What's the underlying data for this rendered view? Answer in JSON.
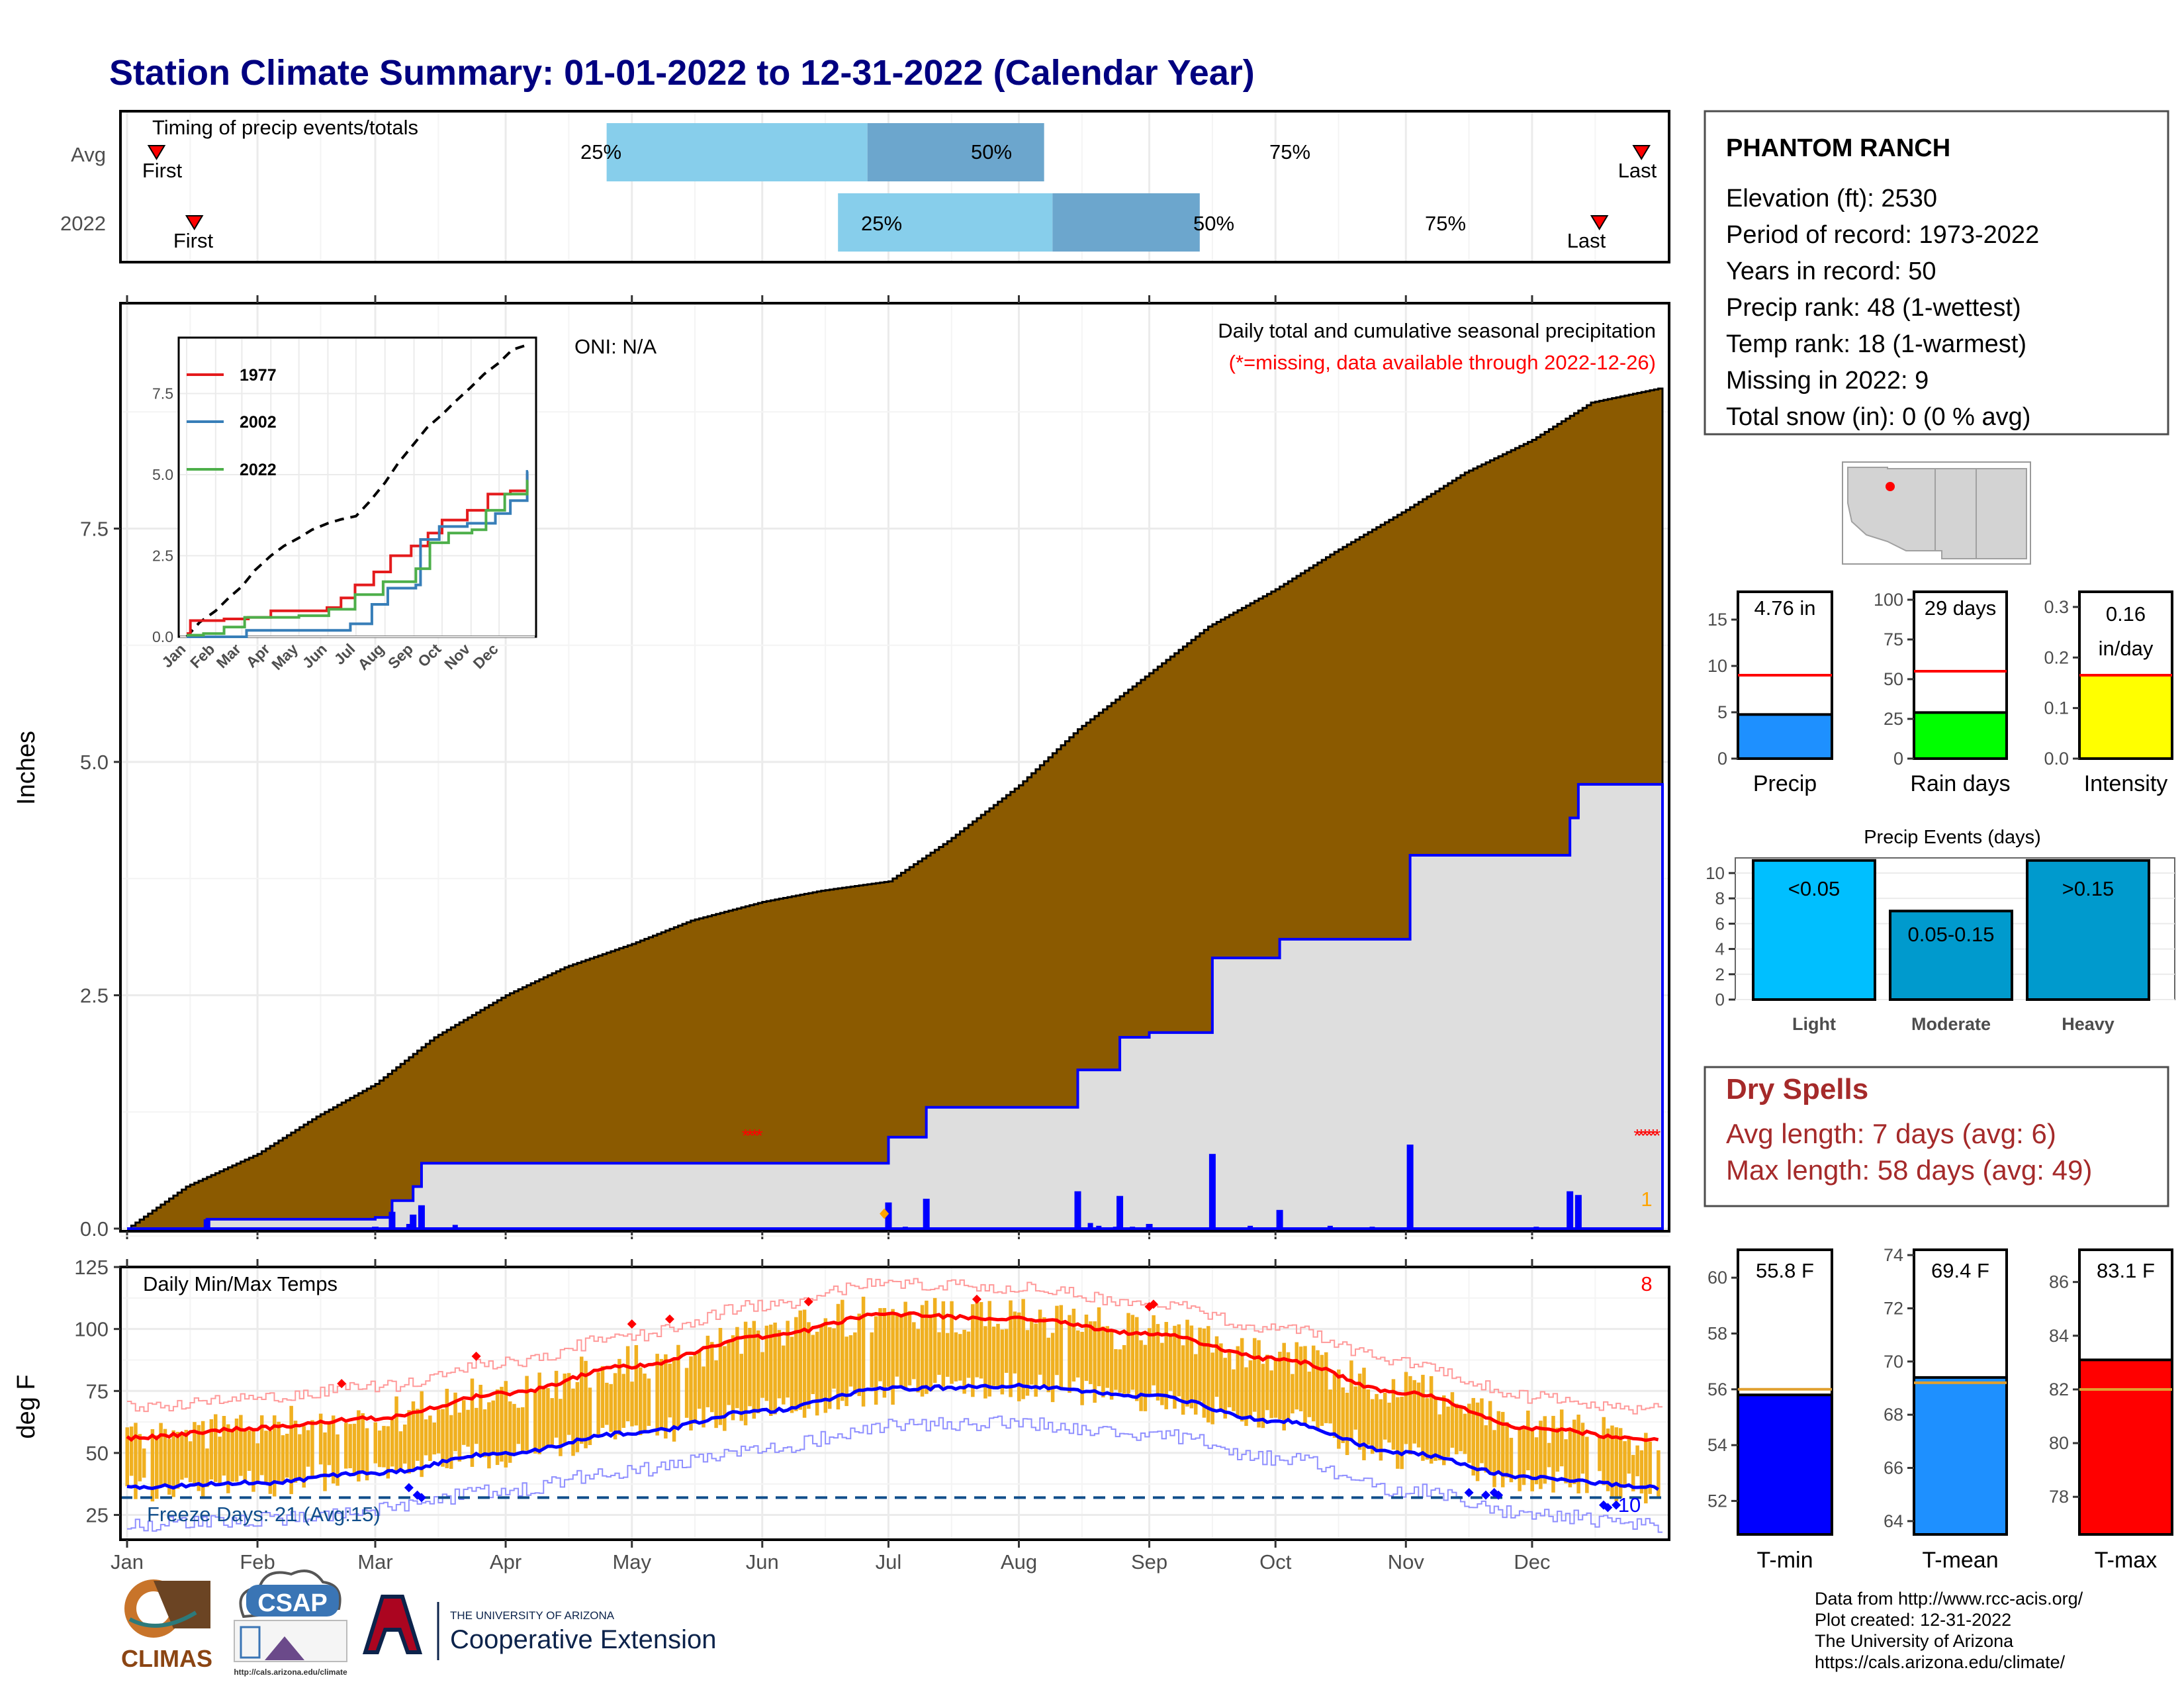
{
  "title": "Station Climate Summary: 01-01-2022 to 12-31-2022 (Calendar Year)",
  "timing_panel": {
    "label": "Timing of precip events/totals",
    "rows": [
      {
        "name": "Avg",
        "first": "First",
        "last": "Last",
        "p25": "25%",
        "p50": "50%",
        "p75": "75%",
        "first_date": "01-08",
        "p25_date": "04-25",
        "p50_date": "06-26",
        "p75_date": "08-07",
        "last_date": "12-27"
      },
      {
        "name": "2022",
        "first": "First",
        "last": "Last",
        "p25": "25%",
        "p50": "50%",
        "p75": "75%",
        "first_date": "01-17",
        "p25_date": "06-19",
        "p50_date": "08-09",
        "p75_date": "09-13",
        "last_date": "12-17"
      }
    ],
    "colors": {
      "light": "#87ceeb",
      "dark": "#6ca6cd",
      "marker": "#ff0000"
    }
  },
  "precip_panel": {
    "ylabel": "Inches",
    "oni": "ONI: N/A",
    "title": "Daily total and cumulative seasonal precipitation",
    "missing_note": "(*=missing, data available through 2022-12-26)",
    "missing_count": "1",
    "yticks": [
      "0.0",
      "2.5",
      "5.0",
      "7.5"
    ],
    "inset": {
      "legend": [
        {
          "name": "1977",
          "color": "#e41a1c"
        },
        {
          "name": "2002",
          "color": "#377eb8"
        },
        {
          "name": "2022",
          "color": "#4daf4a"
        }
      ],
      "yticks": [
        "0.0",
        "2.5",
        "5.0",
        "7.5"
      ],
      "xticks": [
        "Jan",
        "Feb",
        "Mar",
        "Apr",
        "May",
        "Jun",
        "Jul",
        "Aug",
        "Sep",
        "Oct",
        "Nov",
        "Dec"
      ]
    }
  },
  "temp_panel": {
    "ylabel": "deg F",
    "title": "Daily Min/Max Temps",
    "missing_count": "8",
    "freeze": "Freeze Days: 21 (Avg:15)",
    "freeze_count_label": "10",
    "yticks": [
      "25",
      "50",
      "75",
      "100",
      "125"
    ]
  },
  "months": [
    "Jan",
    "Feb",
    "Mar",
    "Apr",
    "May",
    "Jun",
    "Jul",
    "Aug",
    "Sep",
    "Oct",
    "Nov",
    "Dec"
  ],
  "station": {
    "name": "PHANTOM RANCH",
    "lines": [
      "Elevation (ft): 2530",
      "Period of record: 1973-2022",
      "Years in record: 50",
      "Precip rank: 48 (1-wettest)",
      "Temp rank: 18 (1-warmest)",
      "Missing in 2022: 9",
      "Total snow (in): 0 (0 % avg)"
    ]
  },
  "precip_bars": [
    {
      "label": "Precip",
      "value_text": "4.76 in",
      "value": 4.76,
      "avg": 9.0,
      "max": 18,
      "ticks": [
        "0",
        "5",
        "10",
        "15"
      ],
      "tickvals": [
        0,
        5,
        10,
        15
      ],
      "color": "#1e90ff"
    },
    {
      "label": "Rain days",
      "value_text": "29 days",
      "value": 29,
      "avg": 55,
      "max": 105,
      "ticks": [
        "0",
        "25",
        "50",
        "75",
        "100"
      ],
      "tickvals": [
        0,
        25,
        50,
        75,
        100
      ],
      "color": "#00ff00"
    },
    {
      "label": "Intensity",
      "value_text": "0.16 in/day",
      "value_line1": "0.16",
      "value_line2": "in/day",
      "value": 0.165,
      "avg": 0.165,
      "max": 0.33,
      "ticks": [
        "0.0",
        "0.1",
        "0.2",
        "0.3"
      ],
      "tickvals": [
        0,
        0.1,
        0.2,
        0.3
      ],
      "color": "#ffff00"
    }
  ],
  "precip_events": {
    "title": "Precip Events (days)",
    "yticks": [
      "0",
      "2",
      "4",
      "6",
      "8",
      "10"
    ],
    "bars": [
      {
        "label": "Light",
        "range": "<0.05",
        "value": 11,
        "color": "#00bfff"
      },
      {
        "label": "Moderate",
        "range": "0.05-0.15",
        "value": 7,
        "color": "#009acd"
      },
      {
        "label": "Heavy",
        "range": ">0.15",
        "value": 11,
        "color": "#009acd"
      }
    ]
  },
  "dry_spells": {
    "title": "Dry Spells",
    "avg": "Avg length: 7 days (avg: 6)",
    "max": "Max length: 58 days (avg: 49)",
    "color": "#a52a2a"
  },
  "temp_bars": [
    {
      "label": "T-min",
      "value_text": "55.8 F",
      "value": 55.8,
      "avg": 56.0,
      "min": 50.8,
      "max": 61.0,
      "ticks": [
        "52",
        "54",
        "56",
        "58",
        "60"
      ],
      "tickvals": [
        52,
        54,
        56,
        58,
        60
      ],
      "color": "#0000ff"
    },
    {
      "label": "T-mean",
      "value_text": "69.4 F",
      "value": 69.4,
      "avg": 69.2,
      "min": 63.5,
      "max": 74.2,
      "ticks": [
        "64",
        "66",
        "68",
        "70",
        "72",
        "74"
      ],
      "tickvals": [
        64,
        66,
        68,
        70,
        72,
        74
      ],
      "color": "#1e90ff"
    },
    {
      "label": "T-max",
      "value_text": "83.1 F",
      "value": 83.1,
      "avg": 82.0,
      "min": 76.6,
      "max": 87.2,
      "ticks": [
        "78",
        "80",
        "82",
        "84",
        "86"
      ],
      "tickvals": [
        78,
        80,
        82,
        84,
        86
      ],
      "color": "#ff0000"
    }
  ],
  "footer": {
    "lines": [
      "Data from http://www.rcc-acis.org/",
      "Plot created: 12-31-2022",
      "The University of Arizona",
      "https://cals.arizona.edu/climate/"
    ]
  },
  "logos": {
    "climas": "CLIMAS",
    "csap": "CSAP",
    "csap_url": "http://cals.arizona.edu/climate",
    "ua_line1": "THE UNIVERSITY OF ARIZONA",
    "ua_line2": "Cooperative Extension"
  },
  "chart_data": [
    {
      "type": "bar",
      "title": "Timing of precip events/totals",
      "categories": [
        "Avg",
        "2022"
      ],
      "series": [
        {
          "name": "First",
          "values": [
            "01-08",
            "01-17"
          ]
        },
        {
          "name": "25%",
          "values": [
            "04-25",
            "06-19"
          ]
        },
        {
          "name": "50%",
          "values": [
            "06-26",
            "08-09"
          ]
        },
        {
          "name": "75%",
          "values": [
            "08-07",
            "09-13"
          ]
        },
        {
          "name": "Last",
          "values": [
            "12-27",
            "12-17"
          ]
        }
      ]
    },
    {
      "type": "area",
      "title": "Daily total and cumulative seasonal precipitation",
      "ylabel": "Inches",
      "ylim": [
        0,
        9.6
      ],
      "x": [
        "01-01",
        "01-20",
        "02-15",
        "03-01",
        "03-05",
        "03-10",
        "03-12",
        "06-30",
        "07-01",
        "07-10",
        "08-01",
        "08-15",
        "08-25",
        "09-01",
        "09-15",
        "09-16",
        "10-01",
        "10-02",
        "10-15",
        "11-01",
        "11-02",
        "11-15",
        "12-01",
        "12-10",
        "12-12",
        "12-31"
      ],
      "series": [
        {
          "name": "",
          "values": [
            0,
            0.1,
            0.1,
            0.12,
            0.3,
            0.45,
            0.7,
            0.7,
            0.98,
            1.3,
            1.3,
            1.7,
            2.05,
            2.1,
            2.1,
            2.9,
            2.9,
            3.1,
            3.1,
            3.1,
            4.0,
            4.0,
            4.0,
            4.4,
            4.76,
            4.76
          ]
        }
      ]
    },
    {
      "type": "area",
      "title": "Daily total and cumulative seasonal precipitation",
      "ylabel": "Inches",
      "ylim": [
        0,
        9.6
      ],
      "x": [
        "01-01",
        "01-15",
        "02-01",
        "02-15",
        "03-01",
        "03-15",
        "04-01",
        "04-15",
        "05-01",
        "05-15",
        "06-01",
        "06-15",
        "07-01",
        "07-15",
        "08-01",
        "08-15",
        "09-01",
        "09-15",
        "10-01",
        "10-15",
        "11-01",
        "11-15",
        "12-01",
        "12-15",
        "12-31"
      ],
      "series": [
        {
          "name": "",
          "values": [
            0,
            0.45,
            0.8,
            1.2,
            1.55,
            2.05,
            2.5,
            2.8,
            3.05,
            3.3,
            3.5,
            3.62,
            3.72,
            4.15,
            4.75,
            5.35,
            5.95,
            6.45,
            6.85,
            7.25,
            7.7,
            8.1,
            8.45,
            8.85,
            9.0
          ]
        }
      ]
    },
    {
      "type": "line",
      "title": "Daily Min/Max Temps",
      "ylabel": "deg F",
      "ylim": [
        15,
        125
      ],
      "x": [
        "01-01",
        "02-01",
        "03-01",
        "04-01",
        "05-01",
        "06-01",
        "07-01",
        "08-01",
        "09-01",
        "10-01",
        "11-01",
        "12-01",
        "12-31"
      ],
      "series": [
        {
          "name": "",
          "values": [
            56,
            60,
            64,
            74,
            85,
            97,
            106,
            104,
            98,
            88,
            74,
            60,
            55
          ]
        },
        {
          "name": "",
          "values": [
            36,
            38,
            42,
            50,
            58,
            67,
            76,
            77,
            73,
            63,
            50,
            40,
            36
          ]
        }
      ]
    },
    {
      "type": "bar",
      "categories": [
        "Precip",
        "Rain days",
        "Intensity"
      ],
      "series": [
        {
          "name": "",
          "values": [
            4.76,
            29,
            0.16
          ]
        },
        {
          "name": "",
          "values": [
            9.0,
            55,
            0.165
          ]
        }
      ]
    },
    {
      "type": "bar",
      "title": "Precip Events (days)",
      "categories": [
        "Light",
        "Moderate",
        "Heavy"
      ],
      "ylim": [
        0,
        11
      ],
      "values": [
        11,
        7,
        11
      ]
    },
    {
      "type": "bar",
      "categories": [
        "T-min",
        "T-mean",
        "T-max"
      ],
      "series": [
        {
          "name": "",
          "values": [
            55.8,
            69.4,
            83.1
          ]
        },
        {
          "name": "",
          "values": [
            56.0,
            69.2,
            82.0
          ]
        }
      ]
    }
  ]
}
